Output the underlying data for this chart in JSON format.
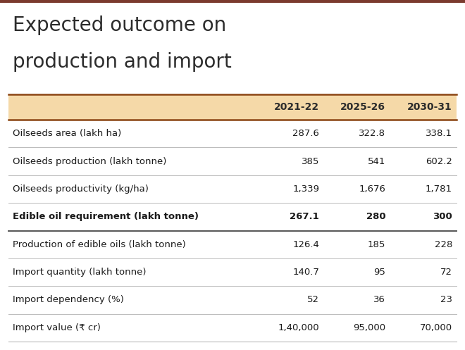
{
  "title_line1": "Expected outcome on",
  "title_line2": "production and import",
  "title_color": "#2c2c2c",
  "background_color": "#ffffff",
  "header_bg_color": "#f5d9a8",
  "header_text_color": "#2c2c2c",
  "top_bar_color": "#7b3a2e",
  "columns": [
    "",
    "2021-22",
    "2025-26",
    "2030-31"
  ],
  "rows": [
    {
      "label": "Oilseeds area (lakh ha)",
      "values": [
        "287.6",
        "322.8",
        "338.1"
      ],
      "bold": false
    },
    {
      "label": "Oilseeds production (lakh tonne)",
      "values": [
        "385",
        "541",
        "602.2"
      ],
      "bold": false
    },
    {
      "label": "Oilseeds productivity (kg/ha)",
      "values": [
        "1,339",
        "1,676",
        "1,781"
      ],
      "bold": false
    },
    {
      "label": "Edible oil requirement (lakh tonne)",
      "values": [
        "267.1",
        "280",
        "300"
      ],
      "bold": true
    },
    {
      "label": "Production of edible oils (lakh tonne)",
      "values": [
        "126.4",
        "185",
        "228"
      ],
      "bold": false
    },
    {
      "label": "Import quantity (lakh tonne)",
      "values": [
        "140.7",
        "95",
        "72"
      ],
      "bold": false
    },
    {
      "label": "Import dependency (%)",
      "values": [
        "52",
        "36",
        "23"
      ],
      "bold": false
    },
    {
      "label": "Import value (₹ cr)",
      "values": [
        "1,40,000",
        "95,000",
        "70,000"
      ],
      "bold": false
    }
  ],
  "header_line_color": "#8b4513",
  "row_line_color": "#bbbbbb",
  "bold_row_line_color": "#555555",
  "text_color": "#1a1a1a",
  "num_color": "#1a1a1a",
  "title_fontsize": 20,
  "header_fontsize": 10,
  "row_fontsize": 9.5
}
